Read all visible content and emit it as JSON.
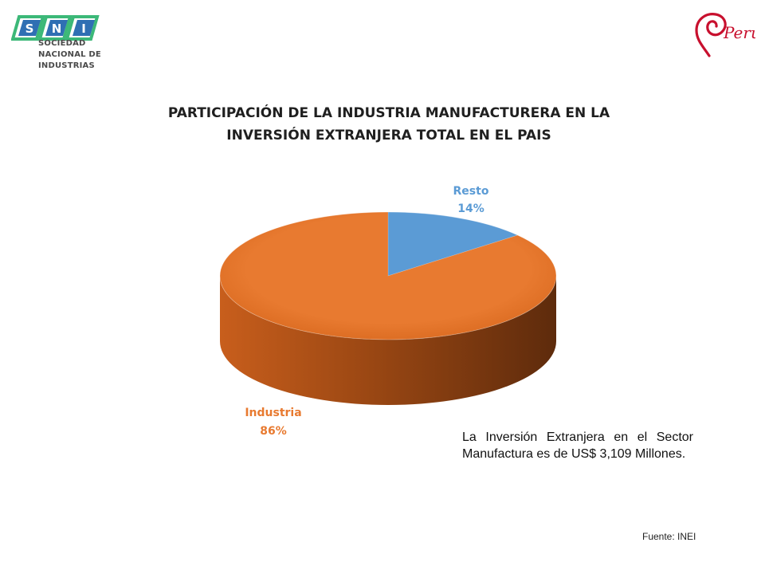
{
  "header": {
    "sni_letters": [
      "S",
      "N",
      "I"
    ],
    "sni_name_lines": [
      "SOCIEDAD",
      "NACIONAL DE",
      "INDUSTRIAS"
    ],
    "peru_brand": "Perú"
  },
  "colors": {
    "industria": "#E87A30",
    "resto": "#5B9BD5",
    "sni_green": "#3CB878",
    "sni_blue": "#2F6FB3",
    "peru_red": "#C8102E"
  },
  "chart_data": {
    "type": "pie",
    "style": "3d",
    "title_lines": [
      "PARTICIPACIÓN DE LA INDUSTRIA MANUFACTURERA EN LA",
      "INVERSIÓN EXTRANJERA TOTAL EN EL PAIS"
    ],
    "slices": [
      {
        "label": "Resto",
        "value": 14,
        "value_label": "14%",
        "color": "#5B9BD5"
      },
      {
        "label": "Industria",
        "value": 86,
        "value_label": "86%",
        "color": "#E87A30"
      }
    ]
  },
  "note": "La Inversión Extranjera en el Sector Manufactura es de US$ 3,109 Millones.",
  "source": "Fuente: INEI"
}
